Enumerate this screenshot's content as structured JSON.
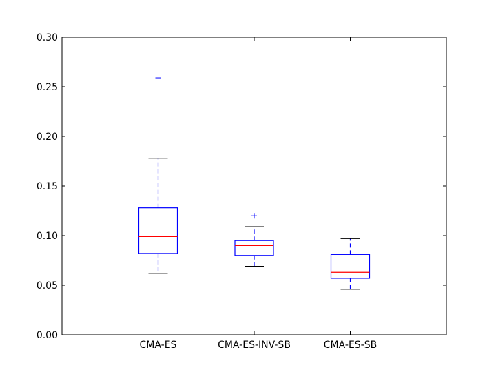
{
  "chart_data": {
    "type": "box",
    "title": "",
    "xlabel": "",
    "ylabel": "",
    "ylim": [
      0,
      0.3
    ],
    "yticks": [
      0.0,
      0.05,
      0.1,
      0.15,
      0.2,
      0.25,
      0.3
    ],
    "ytick_labels": [
      "0.00",
      "0.05",
      "0.10",
      "0.15",
      "0.20",
      "0.25",
      "0.30"
    ],
    "grid": false,
    "categories": [
      "CMA-ES",
      "CMA-ES-INV-SB",
      "CMA-ES-SB"
    ],
    "boxes": [
      {
        "whisker_low": 0.062,
        "q1": 0.082,
        "median": 0.099,
        "q3": 0.128,
        "whisker_high": 0.178,
        "outliers": [
          0.259
        ]
      },
      {
        "whisker_low": 0.069,
        "q1": 0.08,
        "median": 0.09,
        "q3": 0.095,
        "whisker_high": 0.109,
        "outliers": [
          0.12
        ]
      },
      {
        "whisker_low": 0.046,
        "q1": 0.057,
        "median": 0.063,
        "q3": 0.081,
        "whisker_high": 0.097,
        "outliers": []
      }
    ],
    "colors": {
      "box": "#0000ff",
      "median": "#ff0000",
      "whisker_cap": "#000000",
      "outlier": "#0000ff",
      "axes": "#000000"
    }
  }
}
